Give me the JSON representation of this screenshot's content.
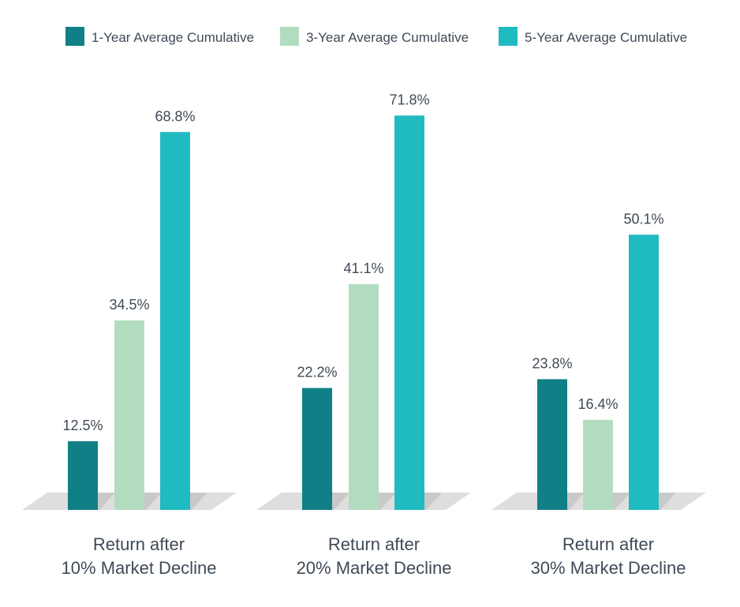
{
  "chart_data": {
    "type": "bar",
    "categories": [
      [
        "Return after",
        "10% Market Decline"
      ],
      [
        "Return after",
        "20% Market Decline"
      ],
      [
        "Return after",
        "30% Market Decline"
      ]
    ],
    "series": [
      {
        "name": "1-Year Average Cumulative",
        "values": [
          12.5,
          22.2,
          23.8
        ],
        "labels": [
          "12.5%",
          "22.2%",
          "23.8%"
        ]
      },
      {
        "name": "3-Year Average Cumulative",
        "values": [
          34.5,
          41.1,
          16.4
        ],
        "labels": [
          "34.5%",
          "41.1%",
          "16.4%"
        ]
      },
      {
        "name": "5-Year Average Cumulative",
        "values": [
          68.8,
          71.8,
          50.1
        ],
        "labels": [
          "68.8%",
          "71.8%",
          "50.1%"
        ]
      }
    ],
    "ylim": [
      0,
      72
    ],
    "grid": false,
    "legend_position": "top",
    "colors": [
      "#107f86",
      "#b2dcbf",
      "#20bac1"
    ],
    "floor_color": "#dedede",
    "floor_shadow_color": "#c9c9c9",
    "text_color": "#3f4a57"
  }
}
